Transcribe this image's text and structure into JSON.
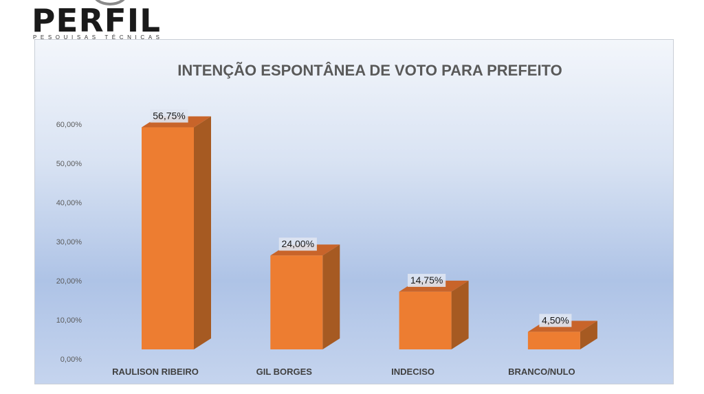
{
  "logo": {
    "name": "PERFIL",
    "tagline": "PESQUISAS TÉCNICAS"
  },
  "chart_data": {
    "type": "bar",
    "title": "INTENÇÃO ESPONTÂNEA DE VOTO PARA PREFEITO",
    "xlabel": "",
    "ylabel": "",
    "categories": [
      "RAULISON RIBEIRO",
      "GIL BORGES",
      "INDECISO",
      "BRANCO/NULO"
    ],
    "values": [
      56.75,
      24.0,
      14.75,
      4.5
    ],
    "data_labels": [
      "56,75%",
      "24,00%",
      "14,75%",
      "4,50%"
    ],
    "y_ticks": [
      "0,00%",
      "10,00%",
      "20,00%",
      "30,00%",
      "40,00%",
      "50,00%",
      "60,00%"
    ],
    "ylim": [
      0,
      60
    ],
    "grid": false,
    "legend": "none",
    "bar_style": "3d",
    "colors": {
      "bar_front": "#ed7d31",
      "bar_side": "#a65a22",
      "bar_top": "#c8642a",
      "title": "#595959",
      "axis_text": "#595959",
      "category_text": "#404040"
    }
  }
}
